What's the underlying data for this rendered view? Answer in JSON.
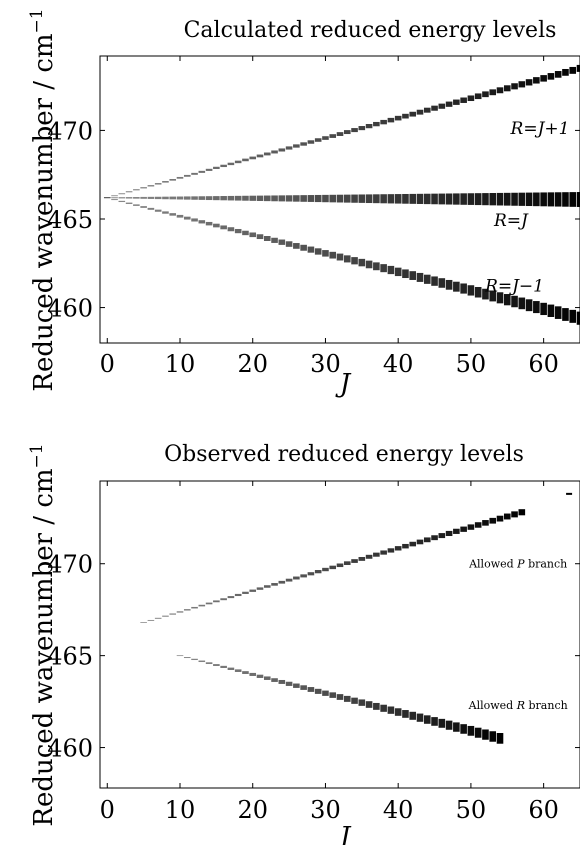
{
  "chart_data": [
    {
      "type": "scatter",
      "title": "Calculated reduced energy levels",
      "xlabel": "J",
      "ylabel": "Reduced wavenumber / cm",
      "ylabel_superscript": "−1",
      "xlim": [
        -1,
        65
      ],
      "ylim": [
        458,
        474.2
      ],
      "xticks": [
        "0",
        "10",
        "20",
        "30",
        "40",
        "50",
        "60"
      ],
      "yticks": [
        "460",
        "465",
        "470"
      ],
      "grid": false,
      "annotations": [
        {
          "text": "R=J+1",
          "x": 59.5,
          "y": 469.8
        },
        {
          "text": "R=J",
          "x": 55.5,
          "y": 464.6
        },
        {
          "text": "R=J−1",
          "x": 56,
          "y": 460.9
        }
      ],
      "series": [
        {
          "start_x": 0,
          "end_x": 65,
          "start_y": 466.2,
          "end_y": 473.5,
          "spread": 0.1
        },
        {
          "start_x": 0,
          "end_x": 65,
          "start_y": 466.2,
          "end_y": 466.1,
          "spread": 0.55
        },
        {
          "start_x": 0,
          "end_x": 65,
          "start_y": 466.2,
          "end_y": 459.4,
          "spread": 0.45
        }
      ]
    },
    {
      "type": "scatter",
      "title": "Observed reduced energy levels",
      "xlabel": "J",
      "ylabel": "Reduced wavenumber / cm",
      "ylabel_superscript": "−1",
      "xlim": [
        -1,
        65
      ],
      "ylim": [
        457.8,
        474.5
      ],
      "xticks": [
        "0",
        "10",
        "20",
        "30",
        "40",
        "50",
        "60"
      ],
      "yticks": [
        "460",
        "465",
        "470"
      ],
      "grid": false,
      "annotations": [
        {
          "prefix": "Allowed ",
          "italic": "P",
          "suffix": " branch",
          "x": 56.5,
          "y": 469.8
        },
        {
          "prefix": "Allowed ",
          "italic": "R",
          "suffix": " branch",
          "x": 56.5,
          "y": 462.1
        }
      ],
      "series": [
        {
          "start_x": 5,
          "end_x": 57,
          "start_y": 466.8,
          "end_y": 472.8,
          "spread": 0.05
        },
        {
          "start_x": 10,
          "end_x": 54,
          "start_y": 465.0,
          "end_y": 460.5,
          "spread": 0.3
        }
      ],
      "extra_points": [
        {
          "x": 63.5,
          "y": 473.8
        }
      ]
    }
  ]
}
